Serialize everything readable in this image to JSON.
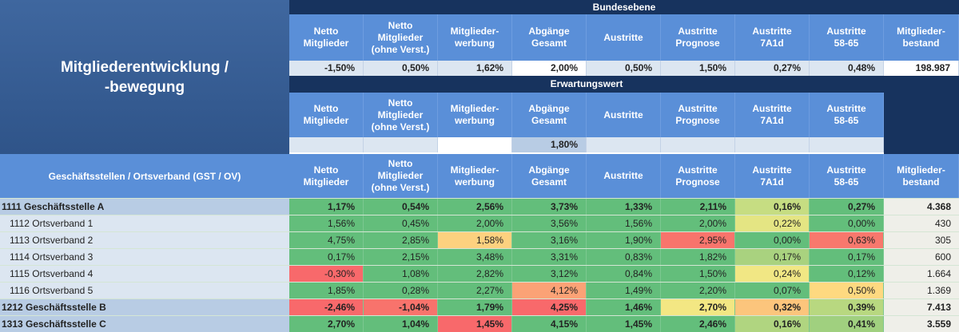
{
  "title": "Mitgliederentwicklung /\n-bewegung",
  "columns": [
    "Netto\nMitglieder",
    "Netto\nMitglieder\n(ohne Verst.)",
    "Mitglieder-\nwerbung",
    "Abgänge\nGesamt",
    "Austritte",
    "Austritte\nPrognose",
    "Austritte\n7A1d",
    "Austritte\n58-65",
    "Mitglieder-\nbestand"
  ],
  "bundesebene": {
    "label": "Bundesebene",
    "values": [
      "-1,50%",
      "0,50%",
      "1,62%",
      "2,00%",
      "0,50%",
      "1,50%",
      "0,27%",
      "0,48%",
      "198.987"
    ],
    "bg": [
      "#dce6f1",
      "#dce6f1",
      "#dce6f1",
      "#ffffff",
      "#dce6f1",
      "#dce6f1",
      "#dce6f1",
      "#dce6f1",
      "#ffffff"
    ]
  },
  "erwartungswert": {
    "label": "Erwartungswert",
    "values": [
      "",
      "",
      "",
      "1,80%",
      "",
      "",
      "",
      ""
    ],
    "bg": [
      "#dce6f1",
      "#dce6f1",
      "#ffffff",
      "#b8cce4",
      "#dce6f1",
      "#dce6f1",
      "#dce6f1",
      "#dce6f1"
    ]
  },
  "table_header": "Geschäftsstellen / Ortsverband (GST / OV)",
  "rows": [
    {
      "label": "1111 Geschäftsstelle A",
      "type": "gst",
      "values": [
        "1,17%",
        "0,54%",
        "2,56%",
        "3,73%",
        "1,33%",
        "2,11%",
        "0,16%",
        "0,27%",
        "4.368"
      ],
      "colors": [
        "#63be7b",
        "#63be7b",
        "#63be7b",
        "#63be7b",
        "#63be7b",
        "#63be7b",
        "#c6dd82",
        "#63be7b"
      ]
    },
    {
      "label": "1112 Ortsverband 1",
      "type": "ov",
      "values": [
        "1,56%",
        "0,45%",
        "2,00%",
        "3,56%",
        "1,56%",
        "2,00%",
        "0,22%",
        "0,00%",
        "430"
      ],
      "colors": [
        "#63be7b",
        "#63be7b",
        "#63be7b",
        "#63be7b",
        "#63be7b",
        "#63be7b",
        "#e4e583",
        "#63be7b"
      ]
    },
    {
      "label": "1113 Ortsverband 2",
      "type": "ov",
      "values": [
        "4,75%",
        "2,85%",
        "1,58%",
        "3,16%",
        "1,90%",
        "2,95%",
        "0,00%",
        "0,63%",
        "305"
      ],
      "colors": [
        "#63be7b",
        "#63be7b",
        "#fdd17f",
        "#63be7b",
        "#63be7b",
        "#f8746c",
        "#63be7b",
        "#f8786d"
      ]
    },
    {
      "label": "1114 Ortsverband 3",
      "type": "ov",
      "values": [
        "0,17%",
        "2,15%",
        "3,48%",
        "3,31%",
        "0,83%",
        "1,82%",
        "0,17%",
        "0,17%",
        "600"
      ],
      "colors": [
        "#63be7b",
        "#63be7b",
        "#63be7b",
        "#63be7b",
        "#63be7b",
        "#63be7b",
        "#a9d27f",
        "#63be7b"
      ]
    },
    {
      "label": "1115 Ortsverband 4",
      "type": "ov",
      "values": [
        "-0,30%",
        "1,08%",
        "2,82%",
        "3,12%",
        "0,84%",
        "1,50%",
        "0,24%",
        "0,12%",
        "1.664"
      ],
      "colors": [
        "#f8696b",
        "#63be7b",
        "#63be7b",
        "#63be7b",
        "#63be7b",
        "#63be7b",
        "#f1e784",
        "#63be7b"
      ]
    },
    {
      "label": "1116 Ortsverband 5",
      "type": "ov",
      "values": [
        "1,85%",
        "0,28%",
        "2,27%",
        "4,12%",
        "1,49%",
        "2,20%",
        "0,07%",
        "0,50%",
        "1.369"
      ],
      "colors": [
        "#63be7b",
        "#63be7b",
        "#63be7b",
        "#fba276",
        "#63be7b",
        "#63be7b",
        "#63be7b",
        "#fed980"
      ]
    },
    {
      "label": "1212 Geschäftsstelle B",
      "type": "gst",
      "values": [
        "-2,46%",
        "-1,04%",
        "1,79%",
        "4,25%",
        "1,46%",
        "2,70%",
        "0,32%",
        "0,39%",
        "7.413"
      ],
      "colors": [
        "#f8696b",
        "#f8736c",
        "#63be7b",
        "#f8696b",
        "#63be7b",
        "#f3e783",
        "#fcc57c",
        "#b8d880"
      ]
    },
    {
      "label": "1313 Geschäftsstelle C",
      "type": "gst",
      "values": [
        "2,70%",
        "1,04%",
        "1,45%",
        "4,15%",
        "1,45%",
        "2,46%",
        "0,16%",
        "0,41%",
        "3.559"
      ],
      "colors": [
        "#63be7b",
        "#63be7b",
        "#f8696b",
        "#63be7b",
        "#63be7b",
        "#63be7b",
        "#b0d580",
        "#a0d07f"
      ]
    }
  ]
}
